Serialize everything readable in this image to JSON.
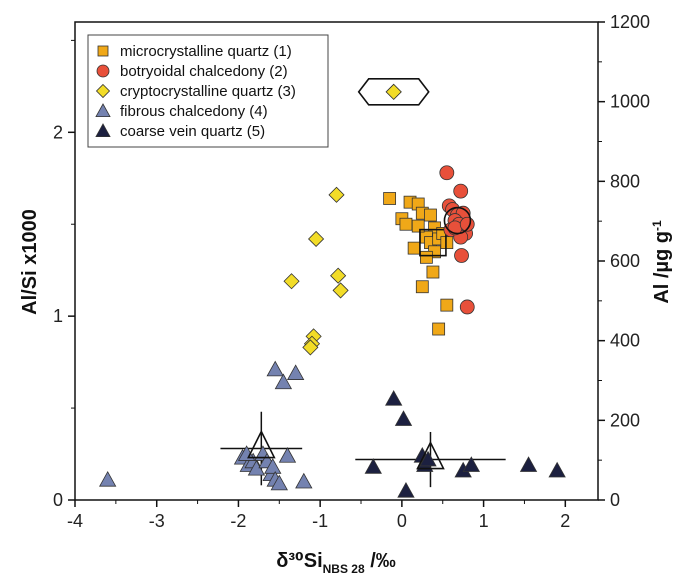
{
  "chart_data": {
    "type": "scatter",
    "xlabel": "δ³⁰Si",
    "xlabel_sub": "NBS 28",
    "xlabel_unit": " /‰",
    "ylabel": "Al/Si x1000",
    "y2label": "Al /µg g",
    "y2label_sup": "-1",
    "xlim": [
      -4,
      2.4
    ],
    "ylim": [
      0,
      2.6
    ],
    "y2lim": [
      0,
      1200
    ],
    "x_ticks": [
      "-4",
      "-3",
      "-2",
      "-1",
      "0",
      "1",
      "2"
    ],
    "y_ticks": [
      "0",
      "1",
      "2"
    ],
    "y2_ticks": [
      "0",
      "200",
      "400",
      "600",
      "800",
      "1000",
      "1200"
    ],
    "legend_position": "top-left",
    "series": [
      {
        "name": "microcrystalline quartz (1)",
        "marker": "square",
        "color": "#F0A818",
        "points": [
          [
            -0.15,
            1.64
          ],
          [
            0.0,
            1.53
          ],
          [
            0.05,
            1.5
          ],
          [
            0.1,
            1.62
          ],
          [
            0.2,
            1.61
          ],
          [
            0.25,
            1.56
          ],
          [
            0.35,
            1.55
          ],
          [
            0.4,
            1.48
          ],
          [
            0.3,
            1.43
          ],
          [
            0.35,
            1.4
          ],
          [
            0.4,
            1.35
          ],
          [
            0.45,
            1.42
          ],
          [
            0.5,
            1.45
          ],
          [
            0.55,
            1.4
          ],
          [
            0.3,
            1.32
          ],
          [
            0.38,
            1.24
          ],
          [
            0.25,
            1.16
          ],
          [
            0.55,
            1.06
          ],
          [
            0.45,
            0.93
          ],
          [
            0.15,
            1.37
          ],
          [
            0.2,
            1.49
          ]
        ],
        "mean_marker": [
          0.38,
          1.4
        ]
      },
      {
        "name": "botryoidal chalcedony (2)",
        "marker": "circle",
        "color": "#E8503A",
        "points": [
          [
            0.55,
            1.78
          ],
          [
            0.72,
            1.68
          ],
          [
            0.58,
            1.6
          ],
          [
            0.62,
            1.58
          ],
          [
            0.68,
            1.55
          ],
          [
            0.75,
            1.56
          ],
          [
            0.65,
            1.52
          ],
          [
            0.7,
            1.5
          ],
          [
            0.6,
            1.47
          ],
          [
            0.78,
            1.45
          ],
          [
            0.72,
            1.43
          ],
          [
            0.65,
            1.48
          ],
          [
            0.8,
            1.5
          ],
          [
            0.73,
            1.33
          ],
          [
            0.8,
            1.05
          ]
        ],
        "mean_marker": [
          0.68,
          1.52
        ]
      },
      {
        "name": "cryptocrystalline quartz (3)",
        "marker": "diamond",
        "color": "#F2DC28",
        "points": [
          [
            -0.8,
            1.66
          ],
          [
            -1.05,
            1.42
          ],
          [
            -0.78,
            1.22
          ],
          [
            -0.75,
            1.14
          ],
          [
            -1.35,
            1.19
          ],
          [
            -1.08,
            0.89
          ],
          [
            -1.1,
            0.85
          ],
          [
            -1.12,
            0.83
          ],
          [
            -0.1,
            2.22
          ]
        ],
        "highlight_point": [
          -0.1,
          2.22
        ]
      },
      {
        "name": "fibrous chalcedony (4)",
        "marker": "triangle",
        "color": "#7482B0",
        "points": [
          [
            -3.6,
            0.11
          ],
          [
            -1.55,
            0.71
          ],
          [
            -1.45,
            0.64
          ],
          [
            -1.3,
            0.69
          ],
          [
            -1.95,
            0.23
          ],
          [
            -1.88,
            0.19
          ],
          [
            -1.82,
            0.21
          ],
          [
            -1.78,
            0.17
          ],
          [
            -1.7,
            0.25
          ],
          [
            -1.65,
            0.21
          ],
          [
            -1.6,
            0.14
          ],
          [
            -1.58,
            0.18
          ],
          [
            -1.55,
            0.11
          ],
          [
            -1.5,
            0.09
          ],
          [
            -1.4,
            0.24
          ],
          [
            -1.2,
            0.1
          ],
          [
            -1.9,
            0.25
          ]
        ],
        "mean": {
          "x": -1.72,
          "y": 0.28,
          "x_err": 0.5,
          "y_err": 0.2
        }
      },
      {
        "name": "coarse vein quartz (5)",
        "marker": "triangle",
        "color": "#1C2040",
        "points": [
          [
            -0.1,
            0.55
          ],
          [
            0.02,
            0.44
          ],
          [
            -0.35,
            0.18
          ],
          [
            0.25,
            0.24
          ],
          [
            0.28,
            0.19
          ],
          [
            0.32,
            0.22
          ],
          [
            0.05,
            0.05
          ],
          [
            0.75,
            0.16
          ],
          [
            0.85,
            0.19
          ],
          [
            1.55,
            0.19
          ],
          [
            1.9,
            0.16
          ]
        ],
        "mean": {
          "x": 0.35,
          "y": 0.22,
          "x_err": 0.92,
          "y_err": 0.15
        }
      }
    ]
  }
}
